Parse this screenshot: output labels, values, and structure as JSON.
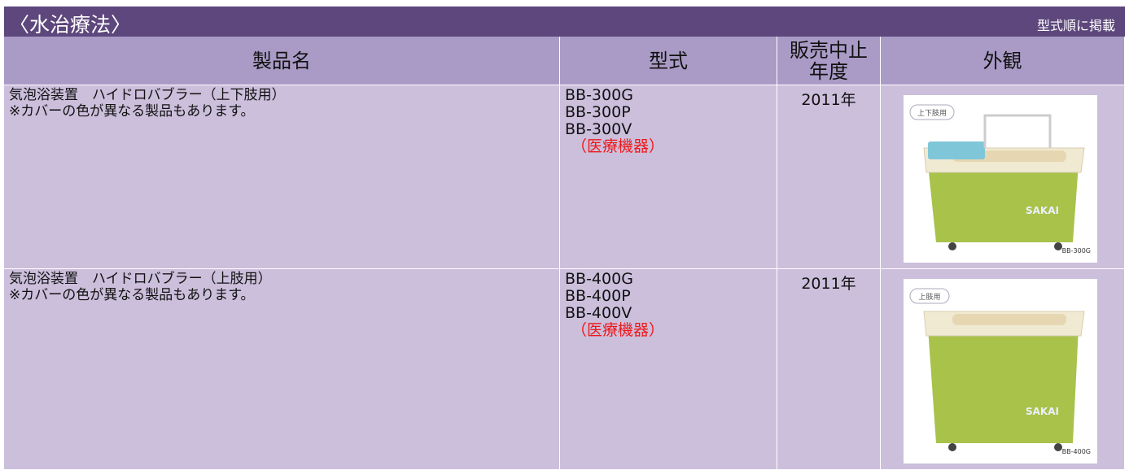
{
  "header": {
    "title": "〈水治療法〉",
    "note": "型式順に掲載"
  },
  "table": {
    "columns": [
      "製品名",
      "型式",
      "販売中止年度",
      "外観"
    ],
    "rows": [
      {
        "name": [
          "気泡浴装置　ハイドロバブラー（上下肢用）",
          "※カバーの色が異なる製品もあります。"
        ],
        "models": [
          "BB-300G",
          "BB-300P",
          "BB-300V"
        ],
        "category": "（医療機器）",
        "year": "2011年",
        "image": {
          "tag": "上下肢用",
          "brand": "SAKAI",
          "model": "BB-300G"
        }
      },
      {
        "name": [
          "気泡浴装置　ハイドロバブラー（上肢用）",
          "※カバーの色が異なる製品もあります。"
        ],
        "models": [
          "BB-400G",
          "BB-400P",
          "BB-400V"
        ],
        "category": "（医療機器）",
        "year": "2011年",
        "image": {
          "tag": "上肢用",
          "brand": "SAKAI",
          "model": "BB-400G"
        }
      }
    ]
  }
}
